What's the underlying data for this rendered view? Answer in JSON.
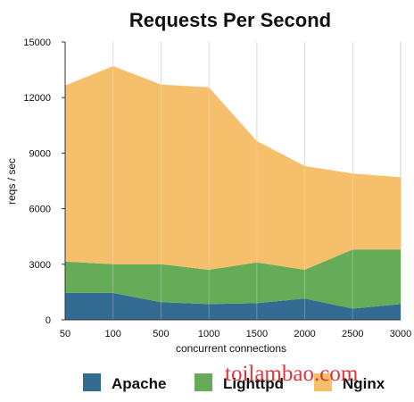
{
  "chart_data": {
    "type": "area",
    "title": "Requests Per Second",
    "xlabel": "concurrent connections",
    "ylabel": "reqs / sec",
    "categories": [
      "50",
      "100",
      "500",
      "1000",
      "1500",
      "2000",
      "2500",
      "3000"
    ],
    "ylim": [
      0,
      15000
    ],
    "yticks": [
      "0",
      "3000",
      "6000",
      "9000",
      "12000",
      "15000"
    ],
    "stacked": true,
    "grid": "vertical",
    "legend_position": "bottom",
    "series": [
      {
        "name": "Apache",
        "color": "#336b92",
        "values": [
          1450,
          1450,
          950,
          850,
          900,
          1150,
          600,
          850
        ]
      },
      {
        "name": "Lighttpd",
        "color": "#66ab58",
        "values": [
          1700,
          1550,
          2050,
          1850,
          2200,
          1550,
          3200,
          2950
        ]
      },
      {
        "name": "Nginx",
        "color": "#f5bf6c",
        "values": [
          9500,
          10700,
          9700,
          9850,
          6550,
          5600,
          4100,
          3900
        ]
      }
    ]
  },
  "watermark": "toilambao.com"
}
